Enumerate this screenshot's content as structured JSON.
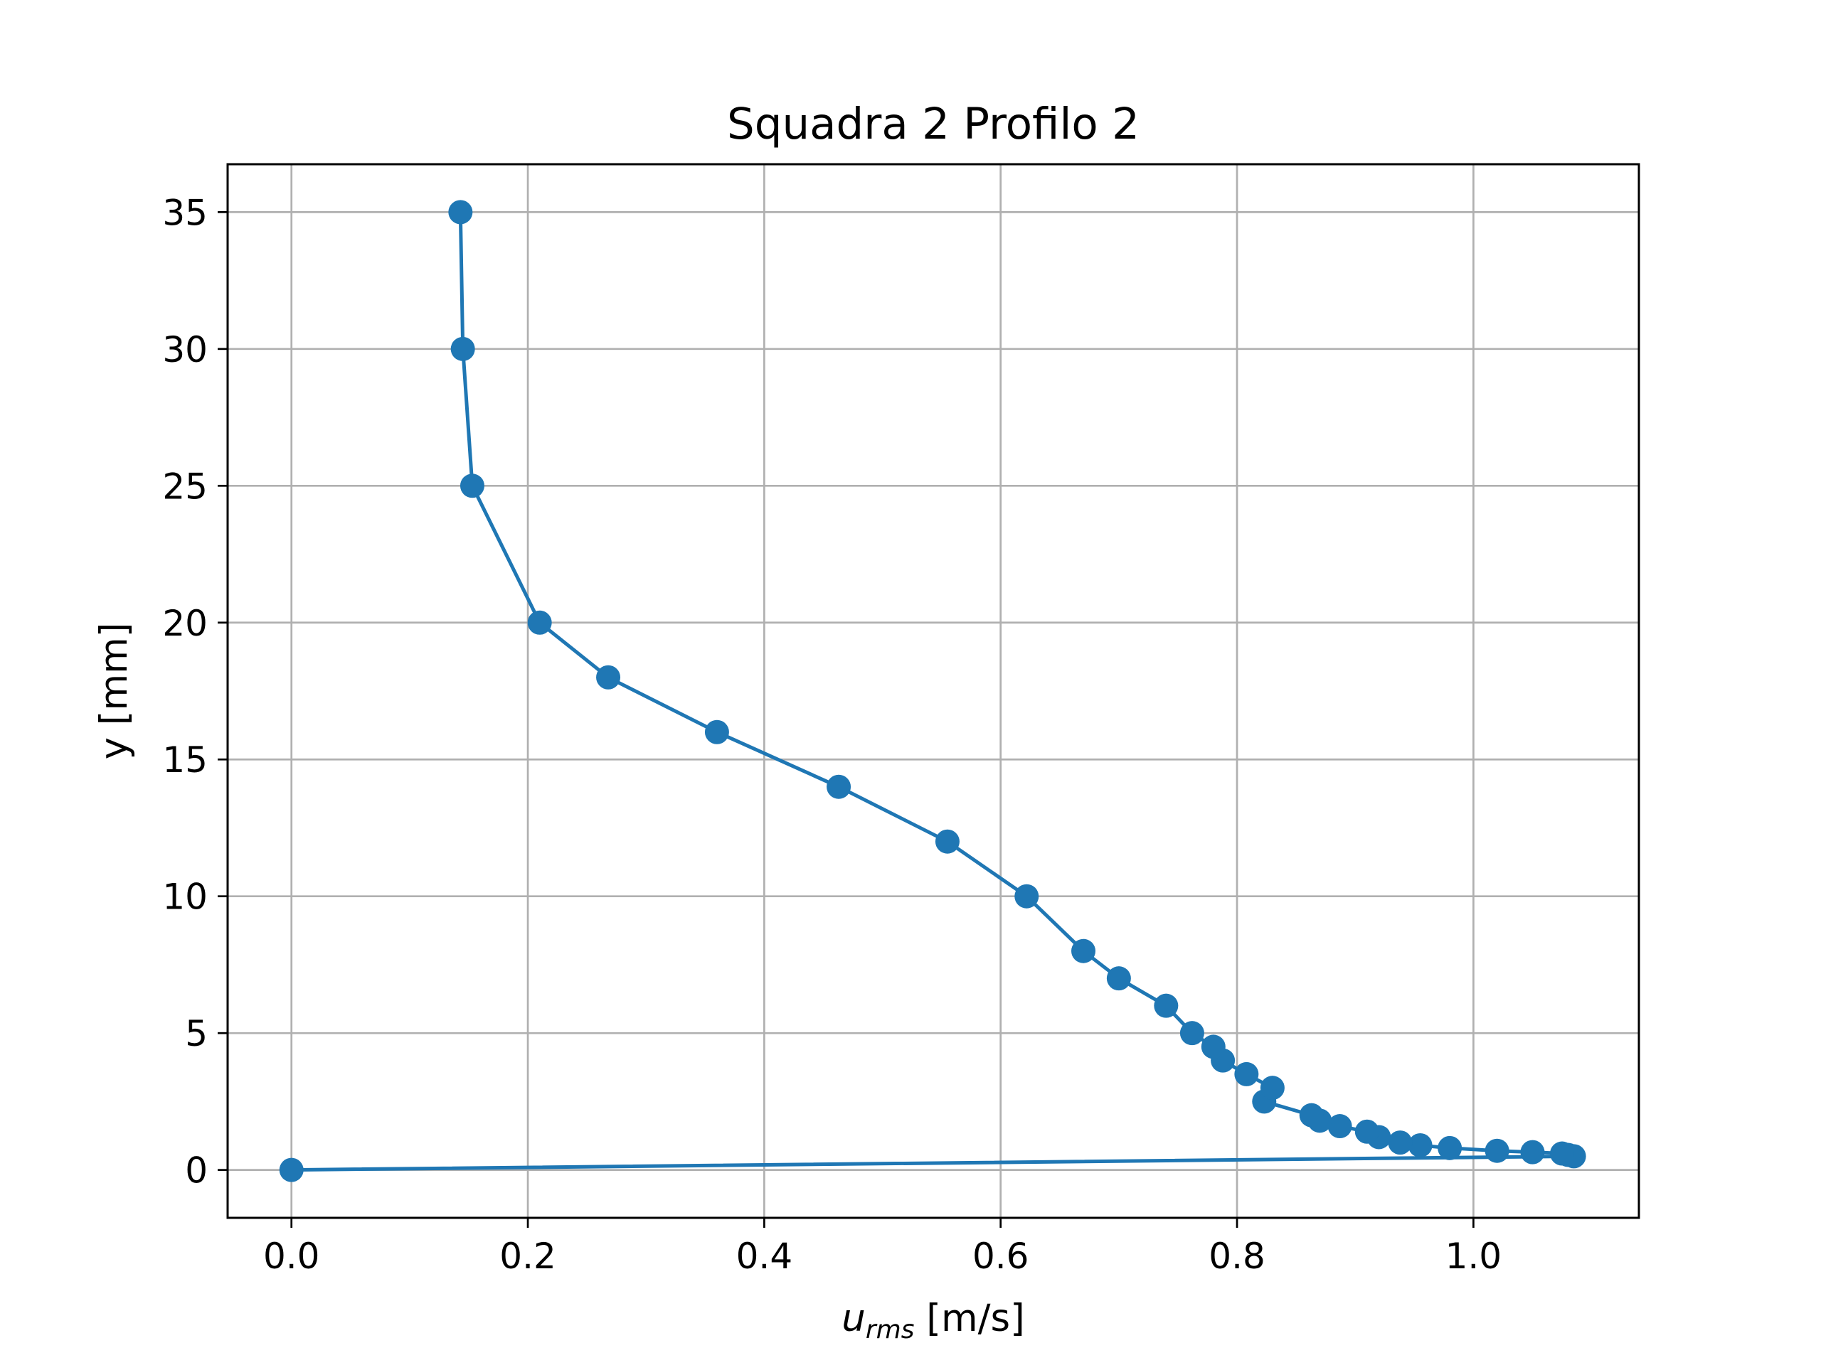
{
  "chart_data": {
    "type": "line",
    "title": "Squadra 2 Profilo 2",
    "xlabel": {
      "var": "u",
      "sub": "rms",
      "unit": " [m/s]"
    },
    "ylabel": "y [mm]",
    "xlim": [
      -0.054,
      1.14
    ],
    "ylim": [
      -1.75,
      36.75
    ],
    "xticks": [
      0.0,
      0.2,
      0.4,
      0.6,
      0.8,
      1.0
    ],
    "xtick_labels": [
      "0.0",
      "0.2",
      "0.4",
      "0.6",
      "0.8",
      "1.0"
    ],
    "yticks": [
      0,
      5,
      10,
      15,
      20,
      25,
      30,
      35
    ],
    "ytick_labels": [
      "0",
      "5",
      "10",
      "15",
      "20",
      "25",
      "30",
      "35"
    ],
    "grid": true,
    "color": "#1f77b4",
    "marker": "circle",
    "series": [
      {
        "x": [
          0.0,
          1.085,
          1.08,
          1.075,
          1.05,
          1.02,
          0.98,
          0.955,
          0.938,
          0.92,
          0.91,
          0.887,
          0.87,
          0.863,
          0.823,
          0.83,
          0.808,
          0.788,
          0.78,
          0.762,
          0.74,
          0.7,
          0.67,
          0.622,
          0.555,
          0.463,
          0.36,
          0.268,
          0.21,
          0.153,
          0.145,
          0.143
        ],
        "y": [
          0.0,
          0.5,
          0.55,
          0.6,
          0.65,
          0.7,
          0.8,
          0.9,
          1.0,
          1.2,
          1.4,
          1.6,
          1.8,
          2.0,
          2.5,
          3.0,
          3.5,
          4.0,
          4.5,
          5.0,
          6.0,
          7.0,
          8.0,
          10.0,
          12.0,
          14.0,
          16.0,
          18.0,
          20.0,
          25.0,
          30.0,
          35.0
        ]
      }
    ]
  }
}
